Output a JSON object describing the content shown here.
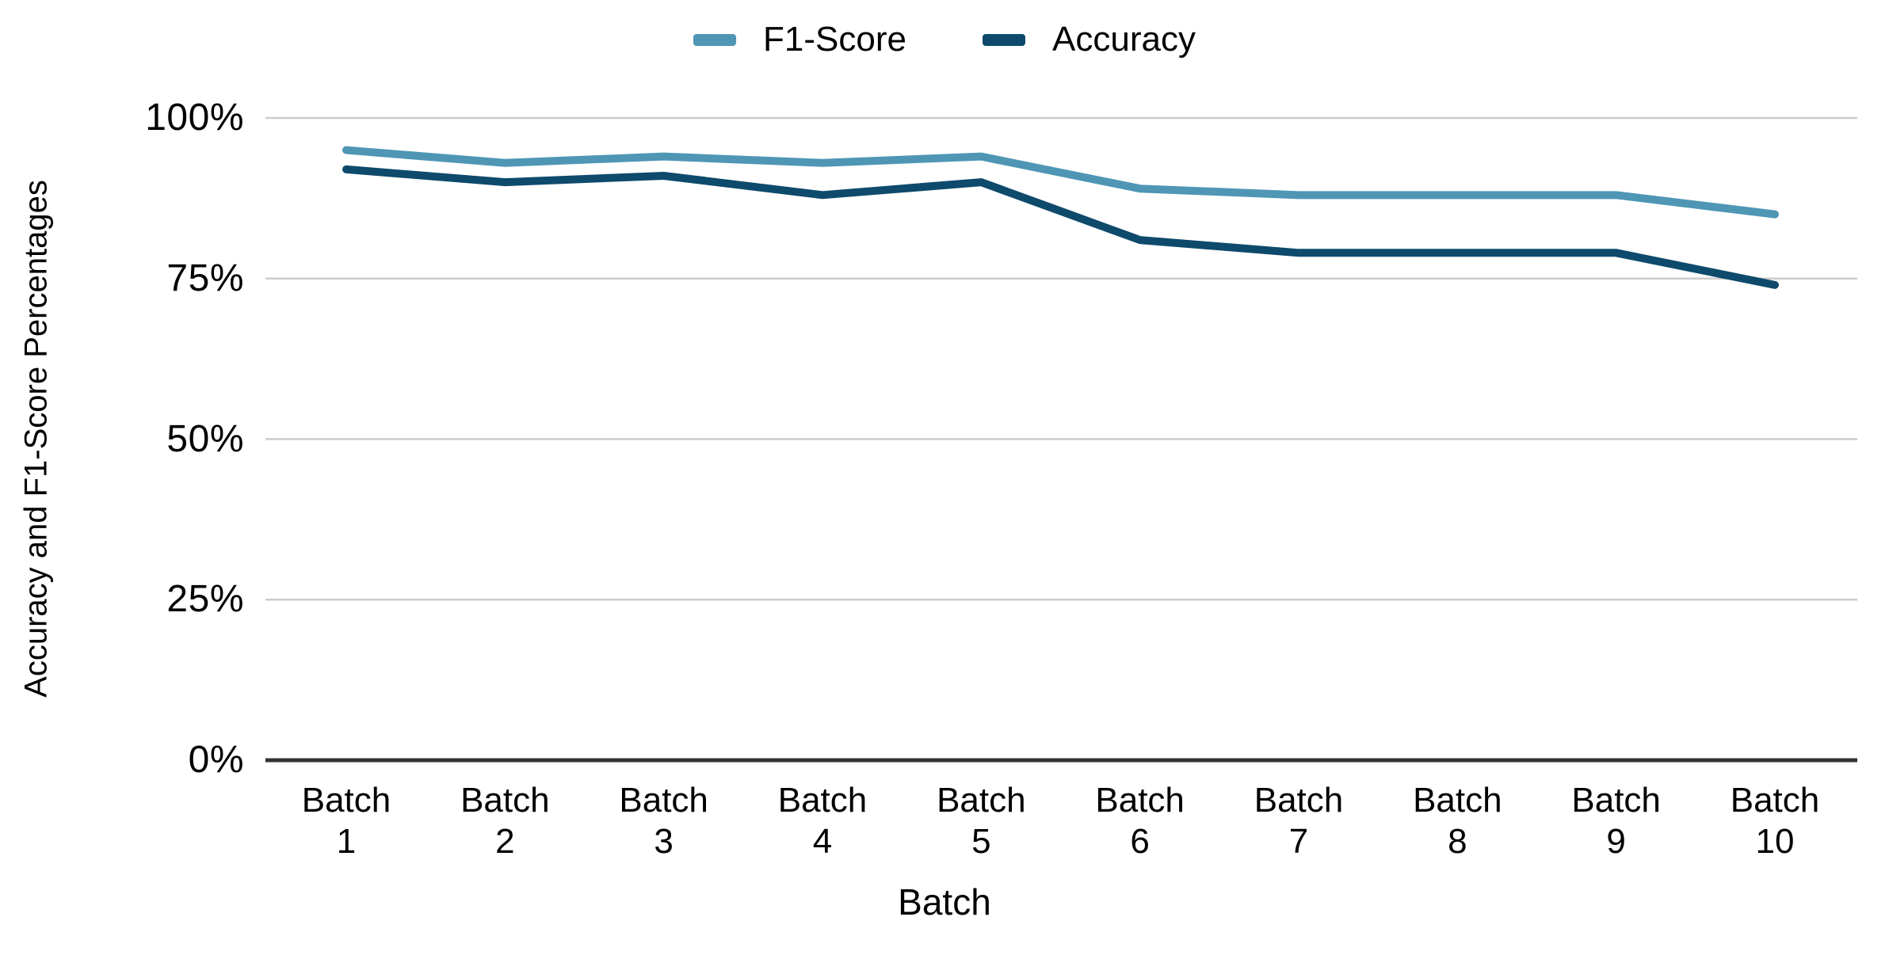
{
  "legend": {
    "items": [
      {
        "label": "F1-Score",
        "color": "#4F96B5"
      },
      {
        "label": "Accuracy",
        "color": "#0E4A6B"
      }
    ]
  },
  "chart_data": {
    "type": "line",
    "title": "",
    "xlabel": "Batch",
    "ylabel": "Accuracy and F1-Score Percentages",
    "categories": [
      "Batch 1",
      "Batch 2",
      "Batch 3",
      "Batch 4",
      "Batch 5",
      "Batch 6",
      "Batch 7",
      "Batch 8",
      "Batch 9",
      "Batch 10"
    ],
    "series": [
      {
        "name": "F1-Score",
        "color": "#4F96B5",
        "values": [
          95,
          93,
          94,
          93,
          94,
          89,
          88,
          88,
          88,
          85
        ]
      },
      {
        "name": "Accuracy",
        "color": "#0E4A6B",
        "values": [
          92,
          90,
          91,
          88,
          90,
          81,
          79,
          79,
          79,
          74
        ]
      }
    ],
    "y_ticks": [
      {
        "label": "100%",
        "value": 100
      },
      {
        "label": "75%",
        "value": 75
      },
      {
        "label": "50%",
        "value": 50
      },
      {
        "label": "25%",
        "value": 25
      },
      {
        "label": "0%",
        "value": 0
      }
    ],
    "ylim": [
      0,
      100
    ],
    "grid": true,
    "legend_position": "top",
    "gridline_color": "#cccccc",
    "axis_color": "#333333"
  }
}
